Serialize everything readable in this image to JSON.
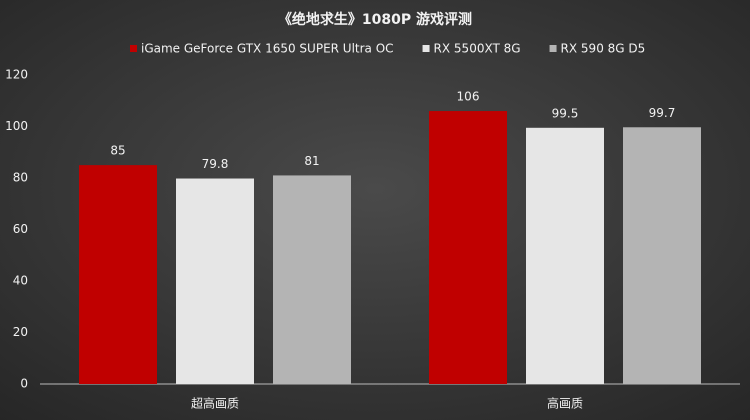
{
  "chart_data": {
    "type": "bar",
    "title": "《绝地求生》1080P 游戏评测",
    "categories": [
      "超高画质",
      "高画质"
    ],
    "series": [
      {
        "name": "iGame GeForce GTX 1650 SUPER Ultra OC",
        "color": "#c00000",
        "values": [
          85,
          106
        ]
      },
      {
        "name": "RX 5500XT 8G",
        "color": "#e6e6e6",
        "values": [
          79.8,
          99.5
        ]
      },
      {
        "name": "RX 590 8G D5",
        "color": "#b4b4b4",
        "values": [
          81,
          99.7
        ]
      }
    ],
    "ylim": [
      0,
      120
    ],
    "yticks": [
      0,
      20,
      40,
      60,
      80,
      100,
      120
    ],
    "grid": false,
    "legend": "top"
  }
}
